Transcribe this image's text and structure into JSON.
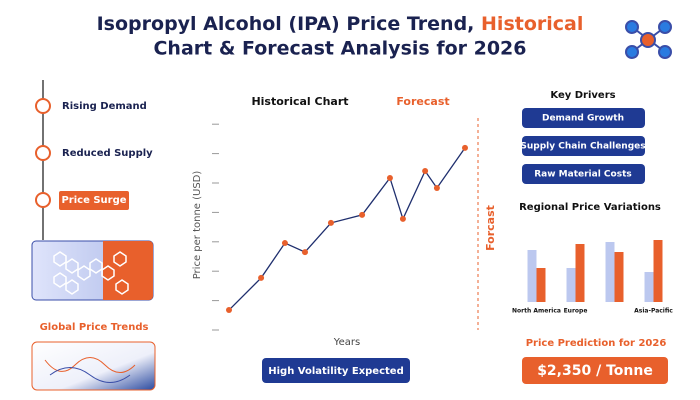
{
  "header": {
    "title": [
      "Isopropyl Alcohol (IPA) Price Trend, ",
      "Historical",
      "Chart & Forecast Analysis for 2026"
    ]
  },
  "timeline": {
    "items": [
      "Rising Demand",
      "Reduced Supply",
      "Price Surge"
    ],
    "trends_title": "Global Price Trends"
  },
  "main_chart": {
    "chart_data": {
      "type": "line",
      "title": "Historical Chart",
      "forecast_label": "Forecast",
      "forecast_axis_label": "Forcast",
      "x_label": "Years",
      "y_label": "Price per tonne (USD)",
      "x": [
        0,
        13.6,
        23.7,
        32.2,
        43.2,
        56.4,
        68.2,
        73.7,
        83.1,
        88.1,
        100
      ],
      "series": [
        {
          "color": "#1f2f6e",
          "marker_color": "#e8602c",
          "values": [
            9.5,
            24.8,
            41.4,
            37.1,
            51,
            54.8,
            72.4,
            52.9,
            75.7,
            67.6,
            86.7
          ]
        }
      ],
      "xlim": [
        0,
        100
      ],
      "ylim": [
        0,
        100
      ],
      "yticks": [
        0,
        14,
        28,
        42,
        56,
        70,
        84,
        98
      ]
    },
    "button": "High Volatility Expected"
  },
  "drivers": {
    "title": "Key Drivers",
    "items": [
      "Demand Growth",
      "Supply Chain Challenges",
      "Raw Material Costs"
    ]
  },
  "regional_chart": {
    "chart_data": {
      "type": "bar",
      "title": "Regional Price Variations",
      "categories": [
        "North America",
        "Europe",
        null,
        "Asia-Pacific"
      ],
      "series": [
        {
          "color": "#bcc8ef",
          "values": [
            52,
            34,
            60,
            30
          ]
        },
        {
          "color": "#e8602c",
          "values": [
            34,
            58,
            50,
            62
          ]
        }
      ],
      "ylim": [
        0,
        70
      ]
    }
  },
  "prediction": {
    "title": "Price Prediction for 2026",
    "value": "$2,350 / Tonne"
  }
}
